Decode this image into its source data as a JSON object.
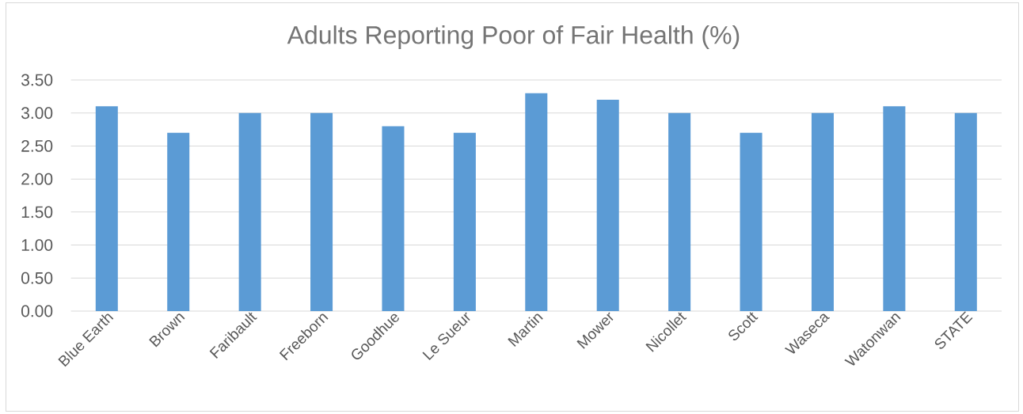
{
  "chart_data": {
    "type": "bar",
    "title": "Adults Reporting Poor of Fair Health (%)",
    "categories": [
      "Blue Earth",
      "Brown",
      "Faribault",
      "Freeborn",
      "Goodhue",
      "Le Sueur",
      "Martin",
      "Mower",
      "Nicollet",
      "Scott",
      "Waseca",
      "Watonwan",
      "STATE"
    ],
    "values": [
      3.1,
      2.7,
      3.0,
      3.0,
      2.8,
      2.7,
      3.3,
      3.2,
      3.0,
      2.7,
      3.0,
      3.1,
      3.0
    ],
    "color": "#5b9bd5",
    "ylim": [
      0,
      3.5
    ],
    "yticks": [
      {
        "value": 0,
        "label": "0.00"
      },
      {
        "value": 0.5,
        "label": "0.50"
      },
      {
        "value": 1,
        "label": "1.00"
      },
      {
        "value": 1.5,
        "label": "1.50"
      },
      {
        "value": 2,
        "label": "2.00"
      },
      {
        "value": 2.5,
        "label": "2.50"
      },
      {
        "value": 3,
        "label": "3.00"
      },
      {
        "value": 3.5,
        "label": "3.50"
      }
    ],
    "grid": "y"
  }
}
